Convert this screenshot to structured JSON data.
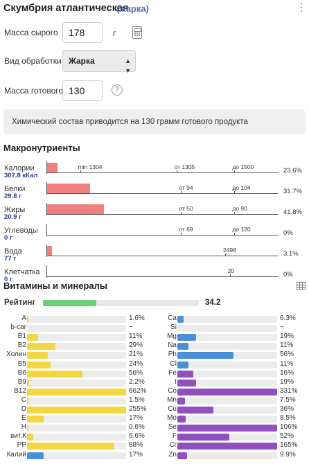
{
  "header": {
    "title": "Скумбрия атлантическая",
    "subtitle": "(жарка)",
    "more_icon": "more-vertical-icon"
  },
  "form": {
    "raw_mass_label": "Масса сырого",
    "raw_mass_value": "178",
    "raw_mass_unit": "г",
    "processing_label": "Вид обработки",
    "processing_value": "Жарка",
    "cooked_mass_label": "Масса готового",
    "cooked_mass_value": "130",
    "help_glyph": "?"
  },
  "note": "Химический состав приводится на 130 грамм готового продукта",
  "macro": {
    "title": "Макронутриенты",
    "rows": [
      {
        "name": "Калории",
        "value": "307.8 кКал",
        "bar": 0.044,
        "pct": "23.6%",
        "marks": [
          {
            "text": "min 1304",
            "pos": 0.145
          },
          {
            "text": "от 1305",
            "pos": 0.56
          },
          {
            "text": "до 1500",
            "pos": 0.81
          }
        ]
      },
      {
        "name": "Белки",
        "value": "29.8 г",
        "bar": 0.185,
        "pct": "31.7%",
        "marks": [
          {
            "text": "от 94",
            "pos": 0.58
          },
          {
            "text": "до 104",
            "pos": 0.81
          }
        ]
      },
      {
        "name": "Жиры",
        "value": "20.9 г",
        "bar": 0.245,
        "pct": "41.8%",
        "marks": [
          {
            "text": "от 50",
            "pos": 0.58
          },
          {
            "text": "до 90",
            "pos": 0.81
          }
        ]
      },
      {
        "name": "Углеводы",
        "value": "0 г",
        "bar": 0,
        "pct": "0%",
        "marks": [
          {
            "text": "от 69",
            "pos": 0.58
          },
          {
            "text": "до 120",
            "pos": 0.81
          }
        ]
      },
      {
        "name": "Вода",
        "value": "77 г",
        "bar": 0.02,
        "pct": "3.1%",
        "marks": [
          {
            "text": "2498",
            "pos": 0.77
          }
        ]
      },
      {
        "name": "Клетчатка",
        "value": "0 г",
        "bar": 0,
        "pct": "0%",
        "marks": [
          {
            "text": "20",
            "pos": 0.79
          }
        ]
      }
    ]
  },
  "vitamins": {
    "title": "Витамины и минералы",
    "table_icon": "table-grid-icon",
    "rating_label": "Рейтинг",
    "rating_value": "34.2",
    "rating_fill": 0.342,
    "colors": {
      "yellow": "#f2d742",
      "blue": "#4a90d9",
      "purple": "#9150c0",
      "rating": "#6ad07a"
    },
    "left": [
      {
        "name": "A",
        "pct": "1.6%",
        "fill": 0.016,
        "color": "yellow"
      },
      {
        "name": "b-car",
        "pct": "~",
        "fill": 0,
        "color": "yellow"
      },
      {
        "name": "B1",
        "pct": "11%",
        "fill": 0.11,
        "color": "yellow"
      },
      {
        "name": "B2",
        "pct": "29%",
        "fill": 0.29,
        "color": "yellow"
      },
      {
        "name": "Холин",
        "pct": "21%",
        "fill": 0.21,
        "color": "yellow"
      },
      {
        "name": "B5",
        "pct": "24%",
        "fill": 0.24,
        "color": "yellow"
      },
      {
        "name": "B6",
        "pct": "56%",
        "fill": 0.56,
        "color": "yellow"
      },
      {
        "name": "B9",
        "pct": "2.2%",
        "fill": 0.022,
        "color": "yellow"
      },
      {
        "name": "B12",
        "pct": "662%",
        "fill": 1,
        "color": "yellow"
      },
      {
        "name": "C",
        "pct": "1.5%",
        "fill": 0.015,
        "color": "yellow"
      },
      {
        "name": "D",
        "pct": "255%",
        "fill": 1,
        "color": "yellow"
      },
      {
        "name": "E",
        "pct": "17%",
        "fill": 0.17,
        "color": "yellow"
      },
      {
        "name": "H",
        "pct": "0.6%",
        "fill": 0.006,
        "color": "yellow"
      },
      {
        "name": "вит.К",
        "pct": "6.6%",
        "fill": 0.066,
        "color": "yellow"
      },
      {
        "name": "PP",
        "pct": "88%",
        "fill": 0.88,
        "color": "yellow"
      },
      {
        "name": "Калий",
        "pct": "17%",
        "fill": 0.17,
        "color": "blue"
      }
    ],
    "right": [
      {
        "name": "Ca",
        "pct": "6.3%",
        "fill": 0.063,
        "color": "blue"
      },
      {
        "name": "Si",
        "pct": "~",
        "fill": 0,
        "color": "blue"
      },
      {
        "name": "Mg",
        "pct": "19%",
        "fill": 0.19,
        "color": "blue"
      },
      {
        "name": "Na",
        "pct": "11%",
        "fill": 0.11,
        "color": "blue"
      },
      {
        "name": "Ph",
        "pct": "56%",
        "fill": 0.56,
        "color": "blue"
      },
      {
        "name": "Cl",
        "pct": "11%",
        "fill": 0.11,
        "color": "blue"
      },
      {
        "name": "Fe",
        "pct": "16%",
        "fill": 0.16,
        "color": "purple"
      },
      {
        "name": "I",
        "pct": "19%",
        "fill": 0.19,
        "color": "purple"
      },
      {
        "name": "Co",
        "pct": "331%",
        "fill": 1,
        "color": "purple"
      },
      {
        "name": "Mn",
        "pct": "7.5%",
        "fill": 0.075,
        "color": "purple"
      },
      {
        "name": "Cu",
        "pct": "36%",
        "fill": 0.36,
        "color": "purple"
      },
      {
        "name": "Mo",
        "pct": "8.5%",
        "fill": 0.085,
        "color": "purple"
      },
      {
        "name": "Se",
        "pct": "106%",
        "fill": 1,
        "color": "purple"
      },
      {
        "name": "F",
        "pct": "52%",
        "fill": 0.52,
        "color": "purple"
      },
      {
        "name": "Cr",
        "pct": "165%",
        "fill": 1,
        "color": "purple"
      },
      {
        "name": "Zn",
        "pct": "9.9%",
        "fill": 0.099,
        "color": "purple"
      }
    ]
  }
}
